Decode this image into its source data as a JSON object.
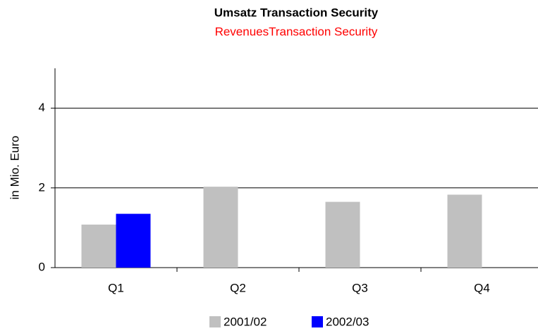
{
  "chart_data": {
    "type": "bar",
    "title": "Umsatz Transaction Security",
    "subtitle": "RevenuesTransaction Security",
    "y_label": "in Mio. Euro",
    "categories": [
      "Q1",
      "Q2",
      "Q3",
      "Q4"
    ],
    "series": [
      {
        "name": "2001/02",
        "color": "#c0c0c0",
        "values": [
          1.08,
          2.03,
          1.65,
          1.83
        ]
      },
      {
        "name": "2002/03",
        "color": "#0000ff",
        "values": [
          1.35,
          null,
          null,
          null
        ]
      }
    ],
    "ylim": [
      0,
      5
    ],
    "yticks": [
      0,
      2,
      4
    ],
    "grid": true,
    "legend": "bottom"
  }
}
